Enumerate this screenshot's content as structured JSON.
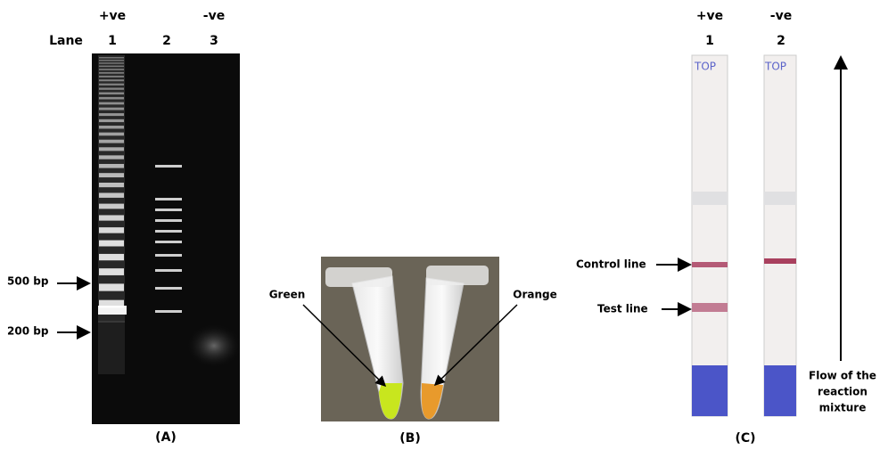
{
  "panel_a": {
    "top_labels": [
      "+ve",
      "-ve"
    ],
    "lane_header": "Lane",
    "lane_numbers": [
      "1",
      "2",
      "3"
    ],
    "markers": [
      "500 bp",
      "200 bp"
    ],
    "caption": "(A)"
  },
  "panel_b": {
    "labels": [
      "Green",
      "Orange"
    ],
    "caption": "(B)"
  },
  "panel_c": {
    "strips": [
      {
        "label": "+ve",
        "number": "1",
        "top": "TOP"
      },
      {
        "label": "-ve",
        "number": "2",
        "top": "TOP"
      }
    ],
    "lines": [
      "Control line",
      "Test line"
    ],
    "flow_label": [
      "Flow of the",
      "reaction",
      "mixture"
    ],
    "caption": "(C)"
  }
}
